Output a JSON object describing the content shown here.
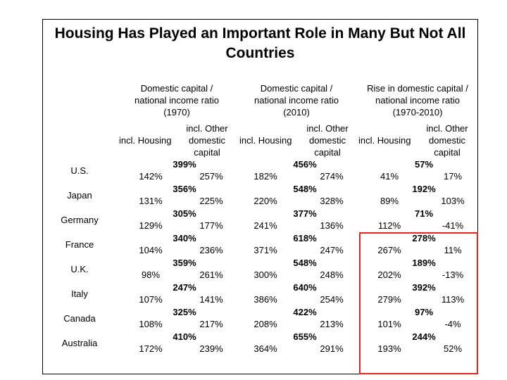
{
  "title": "Housing Has Played an Important Role in Many But Not All Countries",
  "headers": [
    {
      "line1": "Domestic capital /",
      "line2": "national income ratio",
      "line3": "(1970)"
    },
    {
      "line1": "Domestic capital /",
      "line2": "national income ratio",
      "line3": "(2010)"
    },
    {
      "line1": "Rise in domestic capital /",
      "line2": "national income ratio",
      "line3": "(1970-2010)"
    }
  ],
  "subheaders": {
    "housing": "incl. Housing",
    "other_line1": "incl. Other",
    "other_line2": "domestic",
    "other_line3": "capital"
  },
  "rows": [
    {
      "country": "U.S.",
      "g": [
        [
          "399%",
          "142%",
          "257%"
        ],
        [
          "456%",
          "182%",
          "274%"
        ],
        [
          "57%",
          "41%",
          "17%"
        ]
      ]
    },
    {
      "country": "Japan",
      "g": [
        [
          "356%",
          "131%",
          "225%"
        ],
        [
          "548%",
          "220%",
          "328%"
        ],
        [
          "192%",
          "89%",
          "103%"
        ]
      ]
    },
    {
      "country": "Germany",
      "g": [
        [
          "305%",
          "129%",
          "177%"
        ],
        [
          "377%",
          "241%",
          "136%"
        ],
        [
          "71%",
          "112%",
          "-41%"
        ]
      ]
    },
    {
      "country": "France",
      "g": [
        [
          "340%",
          "104%",
          "236%"
        ],
        [
          "618%",
          "371%",
          "247%"
        ],
        [
          "278%",
          "267%",
          "11%"
        ]
      ]
    },
    {
      "country": "U.K.",
      "g": [
        [
          "359%",
          "98%",
          "261%"
        ],
        [
          "548%",
          "300%",
          "248%"
        ],
        [
          "189%",
          "202%",
          "-13%"
        ]
      ]
    },
    {
      "country": "Italy",
      "g": [
        [
          "247%",
          "107%",
          "141%"
        ],
        [
          "640%",
          "386%",
          "254%"
        ],
        [
          "392%",
          "279%",
          "113%"
        ]
      ]
    },
    {
      "country": "Canada",
      "g": [
        [
          "325%",
          "108%",
          "217%"
        ],
        [
          "422%",
          "208%",
          "213%"
        ],
        [
          "97%",
          "101%",
          "-4%"
        ]
      ]
    },
    {
      "country": "Australia",
      "g": [
        [
          "410%",
          "172%",
          "239%"
        ],
        [
          "655%",
          "364%",
          "291%"
        ],
        [
          "244%",
          "193%",
          "52%"
        ]
      ]
    }
  ],
  "colors": {
    "highlight": "#e4251f",
    "text": "#000000",
    "border": "#000000"
  }
}
